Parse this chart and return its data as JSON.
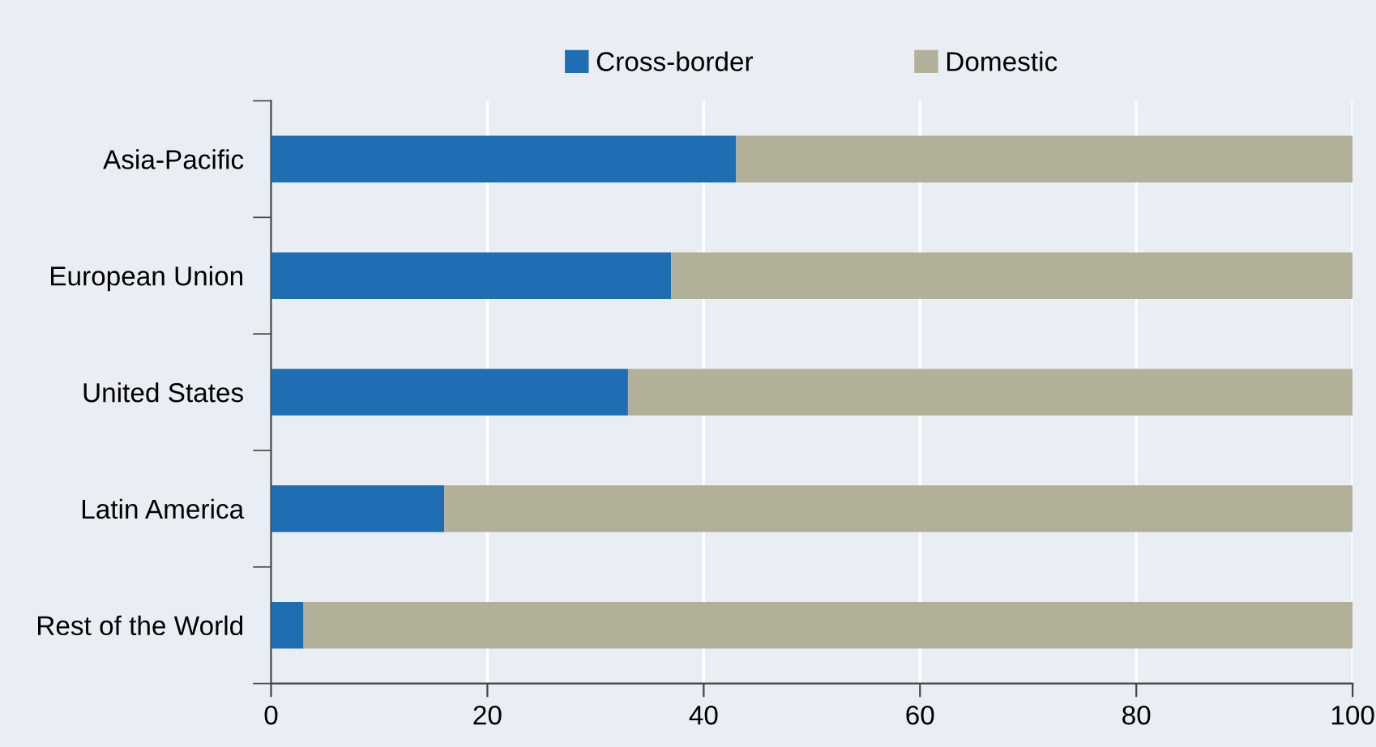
{
  "chart_data": {
    "type": "bar",
    "orientation": "horizontal",
    "stacked": true,
    "categories": [
      "Asia-Pacific",
      "European Union",
      "United States",
      "Latin America",
      "Rest of the World"
    ],
    "series": [
      {
        "name": "Cross-border",
        "color": "#1f6eb4",
        "values": [
          43,
          37,
          33,
          16,
          3
        ]
      },
      {
        "name": "Domestic",
        "color": "#b3b09a",
        "values": [
          57,
          63,
          67,
          84,
          97
        ]
      }
    ],
    "xlim": [
      0,
      100
    ],
    "xticks": [
      0,
      20,
      40,
      60,
      80,
      100
    ],
    "grid": "x",
    "legend": "top"
  }
}
